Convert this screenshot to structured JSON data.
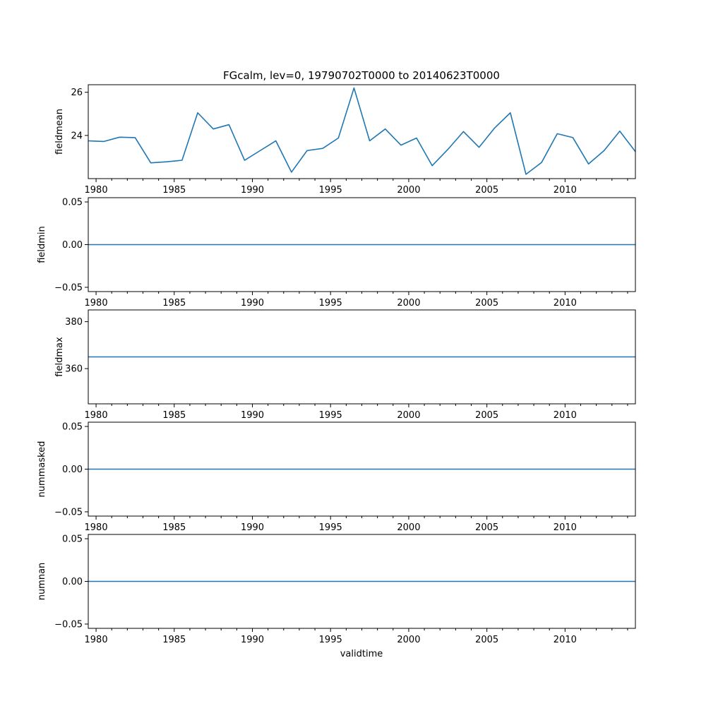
{
  "chart_data": {
    "type": "line",
    "title": "FGcalm, lev=0, 19790702T0000 to 20140623T0000",
    "xlabel": "validtime",
    "color": "#1f77b4",
    "x": [
      1979.5,
      1980.5,
      1981.5,
      1982.5,
      1983.5,
      1984.5,
      1985.5,
      1986.5,
      1987.5,
      1988.5,
      1989.5,
      1990.5,
      1991.5,
      1992.5,
      1993.5,
      1994.5,
      1995.5,
      1996.5,
      1997.5,
      1998.5,
      1999.5,
      2000.5,
      2001.5,
      2002.5,
      2003.5,
      2004.5,
      2005.5,
      2006.5,
      2007.5,
      2008.5,
      2009.5,
      2010.5,
      2011.5,
      2012.5,
      2013.5,
      2014.5
    ],
    "xlim": [
      1979.5,
      2014.5
    ],
    "xticks": [
      1980,
      1985,
      1990,
      1995,
      2000,
      2005,
      2010
    ],
    "panels": [
      {
        "ylabel": "fieldmean",
        "ylim": [
          22,
          26.35
        ],
        "yticks": [
          24,
          26
        ],
        "values": [
          23.75,
          23.72,
          23.92,
          23.9,
          22.73,
          22.78,
          22.85,
          25.05,
          24.3,
          24.5,
          22.85,
          23.3,
          23.75,
          22.3,
          23.3,
          23.4,
          23.88,
          26.2,
          23.75,
          24.3,
          23.55,
          23.88,
          22.6,
          23.35,
          24.18,
          23.45,
          24.35,
          25.05,
          22.2,
          22.75,
          24.08,
          23.9,
          22.68,
          23.3,
          24.2,
          23.25
        ]
      },
      {
        "ylabel": "fieldmin",
        "ylim": [
          -0.055,
          0.055
        ],
        "yticks": [
          -0.05,
          0.0,
          0.05
        ],
        "ytick_labels": [
          "−0.05",
          "0.00",
          "0.05"
        ],
        "values": [
          0,
          0,
          0,
          0,
          0,
          0,
          0,
          0,
          0,
          0,
          0,
          0,
          0,
          0,
          0,
          0,
          0,
          0,
          0,
          0,
          0,
          0,
          0,
          0,
          0,
          0,
          0,
          0,
          0,
          0,
          0,
          0,
          0,
          0,
          0,
          0
        ]
      },
      {
        "ylabel": "fieldmax",
        "ylim": [
          345,
          385
        ],
        "yticks": [
          360,
          380
        ],
        "values": [
          365,
          365,
          365,
          365,
          365,
          365,
          365,
          365,
          365,
          365,
          365,
          365,
          365,
          365,
          365,
          365,
          365,
          365,
          365,
          365,
          365,
          365,
          365,
          365,
          365,
          365,
          365,
          365,
          365,
          365,
          365,
          365,
          365,
          365,
          365,
          365
        ]
      },
      {
        "ylabel": "nummasked",
        "ylim": [
          -0.055,
          0.055
        ],
        "yticks": [
          -0.05,
          0.0,
          0.05
        ],
        "ytick_labels": [
          "−0.05",
          "0.00",
          "0.05"
        ],
        "values": [
          0,
          0,
          0,
          0,
          0,
          0,
          0,
          0,
          0,
          0,
          0,
          0,
          0,
          0,
          0,
          0,
          0,
          0,
          0,
          0,
          0,
          0,
          0,
          0,
          0,
          0,
          0,
          0,
          0,
          0,
          0,
          0,
          0,
          0,
          0,
          0
        ]
      },
      {
        "ylabel": "numnan",
        "ylim": [
          -0.055,
          0.055
        ],
        "yticks": [
          -0.05,
          0.0,
          0.05
        ],
        "ytick_labels": [
          "−0.05",
          "0.00",
          "0.05"
        ],
        "values": [
          0,
          0,
          0,
          0,
          0,
          0,
          0,
          0,
          0,
          0,
          0,
          0,
          0,
          0,
          0,
          0,
          0,
          0,
          0,
          0,
          0,
          0,
          0,
          0,
          0,
          0,
          0,
          0,
          0,
          0,
          0,
          0,
          0,
          0,
          0,
          0
        ]
      }
    ]
  }
}
